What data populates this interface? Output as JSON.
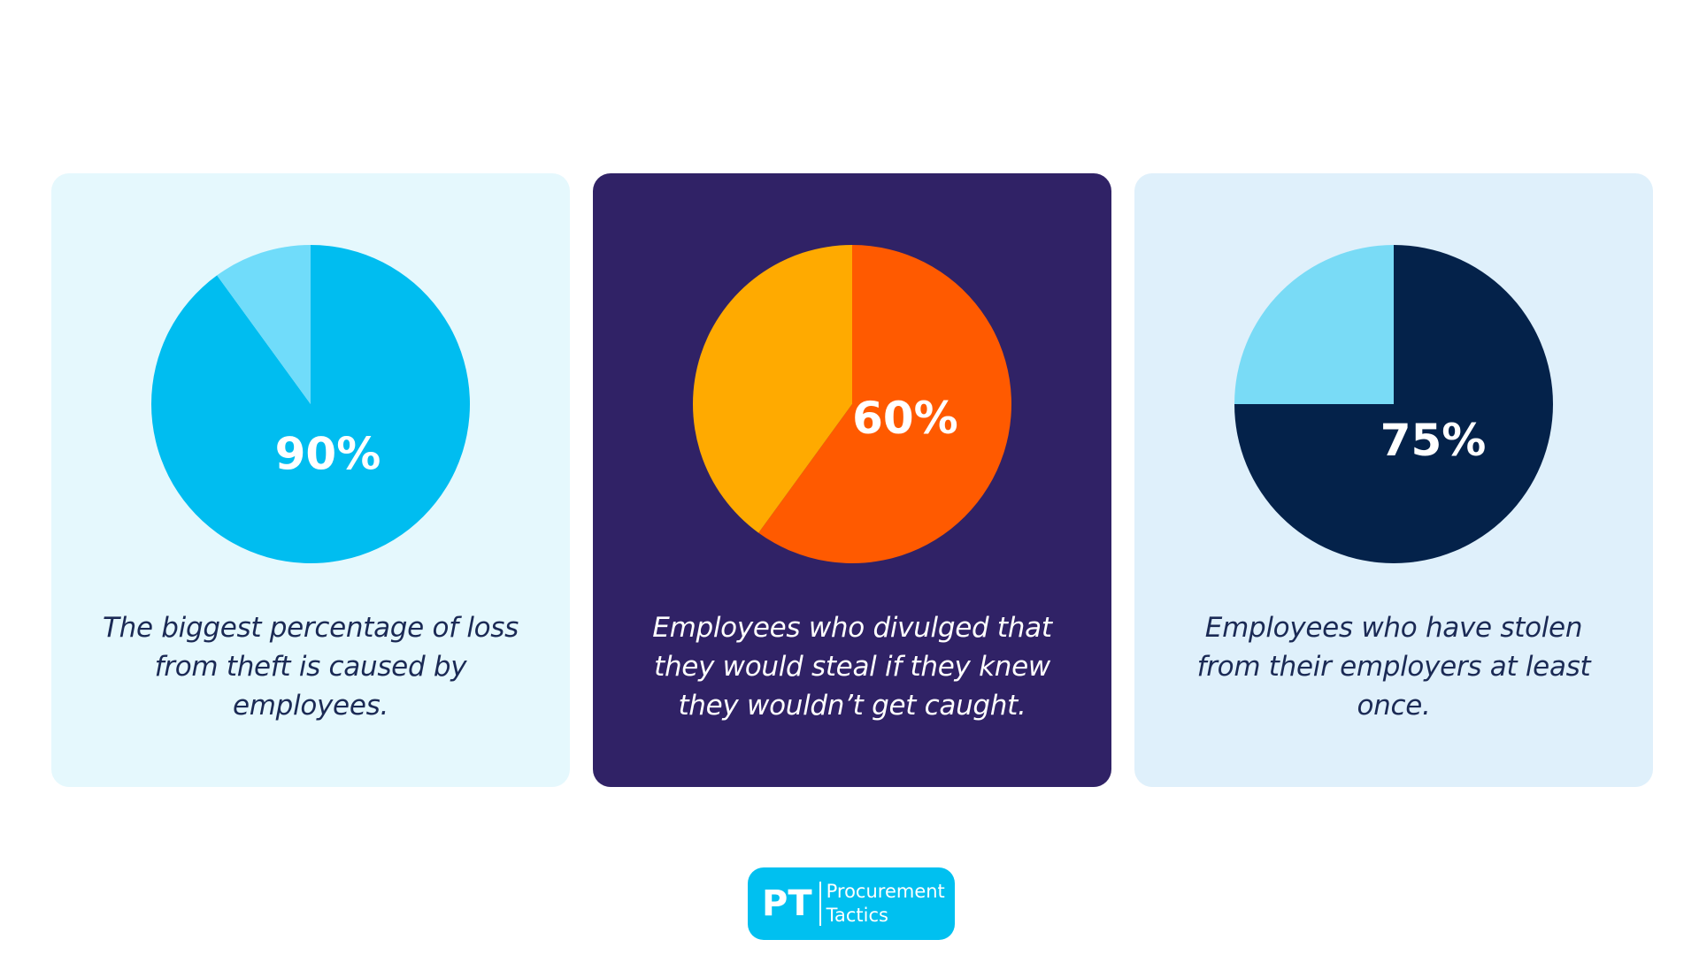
{
  "colors": {
    "background": "#ffffff",
    "caption_dark": "#1b2a55",
    "caption_light": "#ffffff",
    "logo_bg": "#00c0f0"
  },
  "chart_data": [
    {
      "type": "pie",
      "title": "90%",
      "caption": [
        "The biggest percentage of loss",
        "from theft is caused by",
        "employees."
      ],
      "labels": [
        "90%",
        ""
      ],
      "values": [
        90,
        10
      ],
      "colors": [
        "#00bdf0",
        "#70dcfa"
      ],
      "card_color": "#e5f8fd",
      "label_color": "#ffffff",
      "caption_color": "#1b2a55"
    },
    {
      "type": "pie",
      "title": "60%",
      "caption": [
        "Employees who divulged that",
        "they would steal if they knew",
        "they wouldn’t get caught."
      ],
      "labels": [
        "60%",
        ""
      ],
      "values": [
        60,
        40
      ],
      "colors": [
        "#ff5a00",
        "#ffaa00"
      ],
      "card_color": "#302266",
      "label_color": "#ffffff",
      "caption_color": "#ffffff"
    },
    {
      "type": "pie",
      "title": "75%",
      "caption": [
        "Employees who have stolen",
        "from their employers at least",
        "once."
      ],
      "labels": [
        "75%",
        ""
      ],
      "values": [
        75,
        25
      ],
      "colors": [
        "#04224a",
        "#79dbf6"
      ],
      "card_color": "#dff0fb",
      "label_color": "#ffffff",
      "caption_color": "#1b2a55"
    }
  ],
  "logo": {
    "mark": "PT",
    "line1": "Procurement",
    "line2": "Tactics"
  }
}
